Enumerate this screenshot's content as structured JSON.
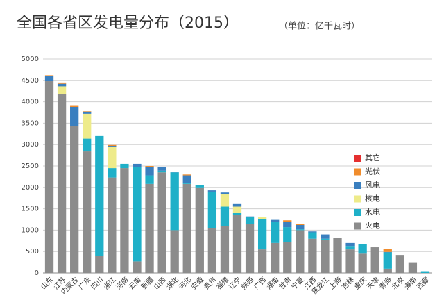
{
  "chart_data": {
    "type": "stacked_bar",
    "title": "全国各省区发电量分布（2015）",
    "subtitle": "（单位：亿千瓦时）",
    "categories": [
      "山东",
      "江苏",
      "内蒙古",
      "广东",
      "四川",
      "浙江",
      "河南",
      "云南",
      "新疆",
      "山西",
      "湖北",
      "河北",
      "安徽",
      "贵州",
      "福建",
      "辽宁",
      "陕西",
      "广西",
      "湖南",
      "甘肃",
      "宁夏",
      "江西",
      "黑龙江",
      "上海",
      "吉林",
      "重庆",
      "天津",
      "青海",
      "北京",
      "海南",
      "西藏"
    ],
    "series": [
      {
        "name": "火电",
        "color": "#8c8c8c",
        "values": [
          4480,
          4180,
          3430,
          2840,
          400,
          2230,
          2450,
          270,
          2080,
          2350,
          1000,
          2080,
          2000,
          1050,
          1100,
          1350,
          1150,
          550,
          700,
          720,
          1000,
          800,
          780,
          820,
          550,
          450,
          600,
          100,
          420,
          250,
          0
        ]
      },
      {
        "name": "水电",
        "color": "#1fb0c8",
        "values": [
          0,
          0,
          0,
          300,
          2800,
          220,
          100,
          2200,
          200,
          40,
          1350,
          20,
          50,
          850,
          450,
          50,
          150,
          700,
          500,
          350,
          20,
          150,
          20,
          0,
          80,
          230,
          0,
          380,
          0,
          0,
          40
        ]
      },
      {
        "name": "核电",
        "color": "#eeeb8a",
        "values": [
          0,
          180,
          0,
          580,
          0,
          500,
          0,
          0,
          0,
          0,
          0,
          0,
          0,
          0,
          290,
          150,
          0,
          50,
          0,
          0,
          0,
          0,
          0,
          0,
          0,
          0,
          0,
          0,
          0,
          0,
          0
        ]
      },
      {
        "name": "风电",
        "color": "#3a7fbf",
        "values": [
          120,
          60,
          450,
          50,
          0,
          20,
          0,
          80,
          200,
          80,
          10,
          180,
          0,
          30,
          40,
          60,
          20,
          10,
          40,
          130,
          100,
          20,
          100,
          0,
          70,
          0,
          0,
          10,
          0,
          0,
          0
        ]
      },
      {
        "name": "光伏",
        "color": "#f08c2c",
        "values": [
          20,
          30,
          40,
          10,
          0,
          20,
          0,
          0,
          20,
          0,
          0,
          20,
          0,
          0,
          0,
          0,
          0,
          0,
          0,
          30,
          30,
          0,
          0,
          0,
          0,
          0,
          0,
          70,
          0,
          0,
          0
        ]
      },
      {
        "name": "其它",
        "color": "#e53030",
        "values": [
          0,
          0,
          0,
          0,
          0,
          0,
          0,
          0,
          0,
          0,
          0,
          0,
          0,
          0,
          0,
          0,
          0,
          0,
          0,
          0,
          0,
          0,
          0,
          0,
          0,
          0,
          0,
          0,
          0,
          0,
          0
        ]
      }
    ],
    "ylim": [
      0,
      5000
    ],
    "yticks": [
      0,
      500,
      1000,
      1500,
      2000,
      2500,
      3000,
      3500,
      4000,
      4500,
      5000
    ],
    "grid": true,
    "legend": "right"
  }
}
